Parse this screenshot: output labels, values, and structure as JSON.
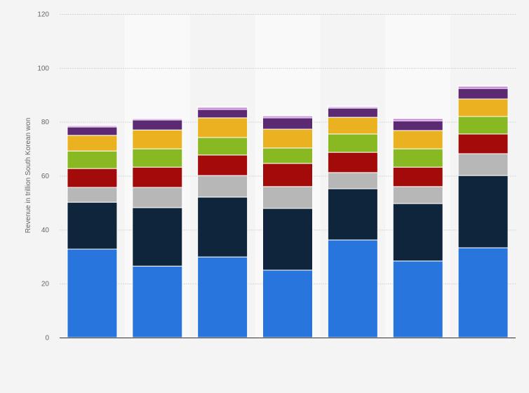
{
  "chart_data": {
    "type": "bar",
    "stacked": true,
    "title": "",
    "xlabel": "",
    "ylabel": "Revenue in trillion South Korean won",
    "ylim": [
      0,
      120
    ],
    "yticks": [
      0,
      20,
      40,
      60,
      80,
      100,
      120
    ],
    "grid": true,
    "legend": "none",
    "categories": [
      "",
      "",
      "",
      "",
      "",
      "",
      ""
    ],
    "series": [
      {
        "color": "#2876dd",
        "values": [
          32.8,
          26.5,
          29.9,
          25.0,
          36.2,
          28.4,
          33.3
        ]
      },
      {
        "color": "#0f253c",
        "values": [
          17.4,
          21.7,
          22.2,
          22.9,
          19.0,
          21.3,
          26.8
        ]
      },
      {
        "color": "#b7b7b7",
        "values": [
          5.5,
          7.5,
          8.0,
          8.1,
          6.0,
          6.3,
          8.1
        ]
      },
      {
        "color": "#a30a0a",
        "values": [
          7.0,
          7.5,
          7.6,
          8.6,
          7.5,
          7.2,
          7.3
        ]
      },
      {
        "color": "#88b923",
        "values": [
          6.5,
          6.8,
          6.5,
          5.7,
          6.8,
          6.8,
          6.5
        ]
      },
      {
        "color": "#eab221",
        "values": [
          5.8,
          7.0,
          7.3,
          7.0,
          6.2,
          6.8,
          6.5
        ]
      },
      {
        "color": "#5c2a73",
        "values": [
          3.1,
          3.7,
          3.1,
          4.2,
          3.4,
          3.6,
          3.9
        ]
      },
      {
        "color": "#c77ddb",
        "values": [
          0.5,
          0.5,
          0.8,
          0.7,
          0.5,
          0.8,
          0.8
        ]
      },
      {
        "color": "#9ec7f0",
        "values": [
          0.2,
          0.1,
          0.2,
          0.3,
          0.3,
          0.0,
          0.2
        ]
      }
    ]
  }
}
